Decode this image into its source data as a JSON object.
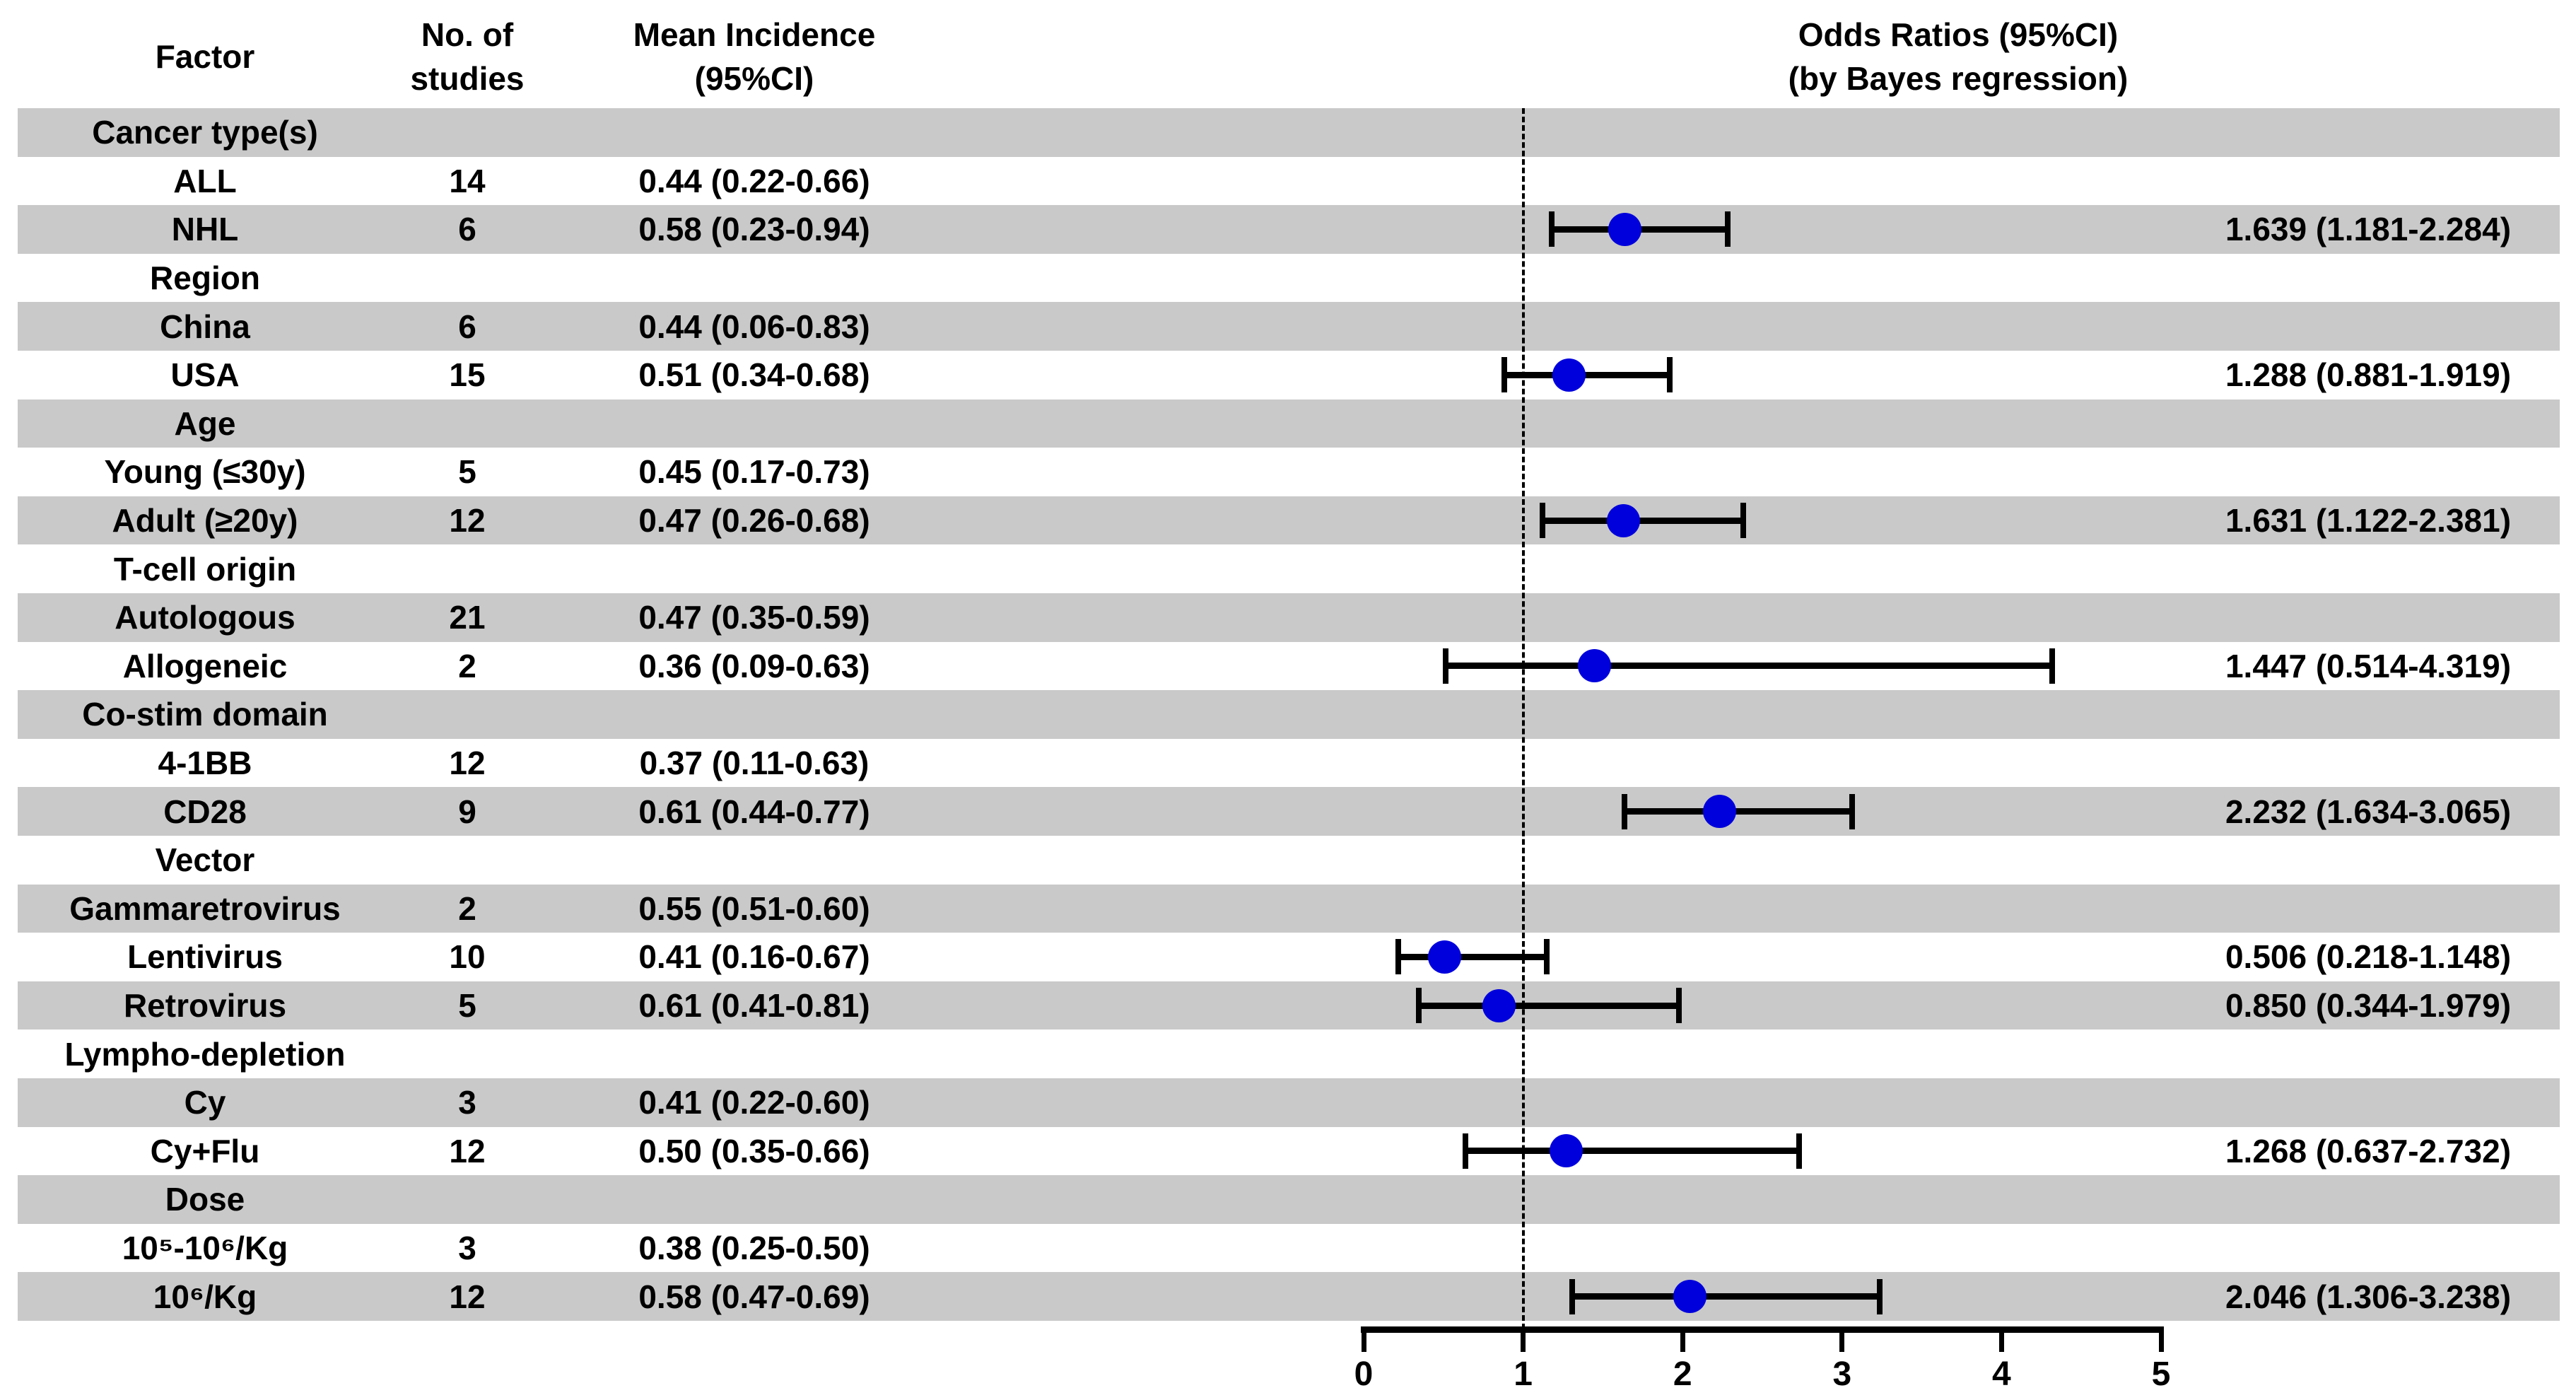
{
  "figure": {
    "headers": {
      "factor": "Factor",
      "studies_line1": "No. of",
      "studies_line2": "studies",
      "incidence_line1": "Mean Incidence",
      "incidence_line2": "(95%CI)",
      "or_line1": "Odds Ratios (95%CI)",
      "or_line2": "(by Bayes regression)"
    }
  },
  "chart_data": {
    "type": "forest",
    "title": "Odds Ratios (95%CI) (by Bayes regression)",
    "x_axis": {
      "min": 0,
      "max": 5,
      "ticks": [
        "0",
        "1",
        "2",
        "3",
        "4",
        "5"
      ],
      "reference_line": 1,
      "grid": false
    },
    "colors": {
      "marker_dot": "#0000dd",
      "shaded_band": "#c9c9c9",
      "line": "#000000"
    },
    "columns": [
      "Factor",
      "No. of studies",
      "Mean Incidence (95%CI)",
      "Odds Ratios (95%CI) (by Bayes regression)"
    ],
    "rows": [
      {
        "type": "group",
        "label": "Cancer type(s)",
        "shaded": true
      },
      {
        "type": "item",
        "label": "ALL",
        "studies": "14",
        "incidence": "0.44 (0.22-0.66)",
        "shaded": false
      },
      {
        "type": "item",
        "label": "NHL",
        "studies": "6",
        "incidence": "0.58 (0.23-0.94)",
        "shaded": true,
        "or": 1.639,
        "ci_low": 1.181,
        "ci_high": 2.284,
        "or_text": "1.639 (1.181-2.284)"
      },
      {
        "type": "group",
        "label": "Region",
        "shaded": false
      },
      {
        "type": "item",
        "label": "China",
        "studies": "6",
        "incidence": "0.44 (0.06-0.83)",
        "shaded": true
      },
      {
        "type": "item",
        "label": "USA",
        "studies": "15",
        "incidence": "0.51 (0.34-0.68)",
        "shaded": false,
        "or": 1.288,
        "ci_low": 0.881,
        "ci_high": 1.919,
        "or_text": "1.288 (0.881-1.919)"
      },
      {
        "type": "group",
        "label": "Age",
        "shaded": true
      },
      {
        "type": "item",
        "label": "Young (≤30y)",
        "studies": "5",
        "incidence": "0.45 (0.17-0.73)",
        "shaded": false
      },
      {
        "type": "item",
        "label": "Adult (≥20y)",
        "studies": "12",
        "incidence": "0.47 (0.26-0.68)",
        "shaded": true,
        "or": 1.631,
        "ci_low": 1.122,
        "ci_high": 2.381,
        "or_text": "1.631 (1.122-2.381)"
      },
      {
        "type": "group",
        "label": "T-cell origin",
        "shaded": false
      },
      {
        "type": "item",
        "label": "Autologous",
        "studies": "21",
        "incidence": "0.47 (0.35-0.59)",
        "shaded": true
      },
      {
        "type": "item",
        "label": "Allogeneic",
        "studies": "2",
        "incidence": "0.36 (0.09-0.63)",
        "shaded": false,
        "or": 1.447,
        "ci_low": 0.514,
        "ci_high": 4.319,
        "or_text": "1.447 (0.514-4.319)"
      },
      {
        "type": "group",
        "label": "Co-stim domain",
        "shaded": true
      },
      {
        "type": "item",
        "label": "4-1BB",
        "studies": "12",
        "incidence": "0.37 (0.11-0.63)",
        "shaded": false
      },
      {
        "type": "item",
        "label": "CD28",
        "studies": "9",
        "incidence": "0.61 (0.44-0.77)",
        "shaded": true,
        "or": 2.232,
        "ci_low": 1.634,
        "ci_high": 3.065,
        "or_text": "2.232 (1.634-3.065)"
      },
      {
        "type": "group",
        "label": "Vector",
        "shaded": false
      },
      {
        "type": "item",
        "label": "Gammaretrovirus",
        "studies": "2",
        "incidence": "0.55 (0.51-0.60)",
        "shaded": true
      },
      {
        "type": "item",
        "label": "Lentivirus",
        "studies": "10",
        "incidence": "0.41 (0.16-0.67)",
        "shaded": false,
        "or": 0.506,
        "ci_low": 0.218,
        "ci_high": 1.148,
        "or_text": "0.506 (0.218-1.148)"
      },
      {
        "type": "item",
        "label": "Retrovirus",
        "studies": "5",
        "incidence": "0.61 (0.41-0.81)",
        "shaded": true,
        "or": 0.85,
        "ci_low": 0.344,
        "ci_high": 1.979,
        "or_text": "0.850 (0.344-1.979)"
      },
      {
        "type": "group",
        "label": "Lympho-depletion",
        "shaded": false
      },
      {
        "type": "item",
        "label": "Cy",
        "studies": "3",
        "incidence": "0.41 (0.22-0.60)",
        "shaded": true
      },
      {
        "type": "item",
        "label": "Cy+Flu",
        "studies": "12",
        "incidence": "0.50 (0.35-0.66)",
        "shaded": false,
        "or": 1.268,
        "ci_low": 0.637,
        "ci_high": 2.732,
        "or_text": "1.268 (0.637-2.732)"
      },
      {
        "type": "group",
        "label": "Dose",
        "shaded": true
      },
      {
        "type": "item",
        "label": "10⁵-10⁶/Kg",
        "studies": "3",
        "incidence": "0.38 (0.25-0.50)",
        "shaded": false
      },
      {
        "type": "item",
        "label": "10⁶/Kg",
        "studies": "12",
        "incidence": "0.58 (0.47-0.69)",
        "shaded": true,
        "or": 2.046,
        "ci_low": 1.306,
        "ci_high": 3.238,
        "or_text": "2.046 (1.306-3.238)"
      }
    ]
  }
}
